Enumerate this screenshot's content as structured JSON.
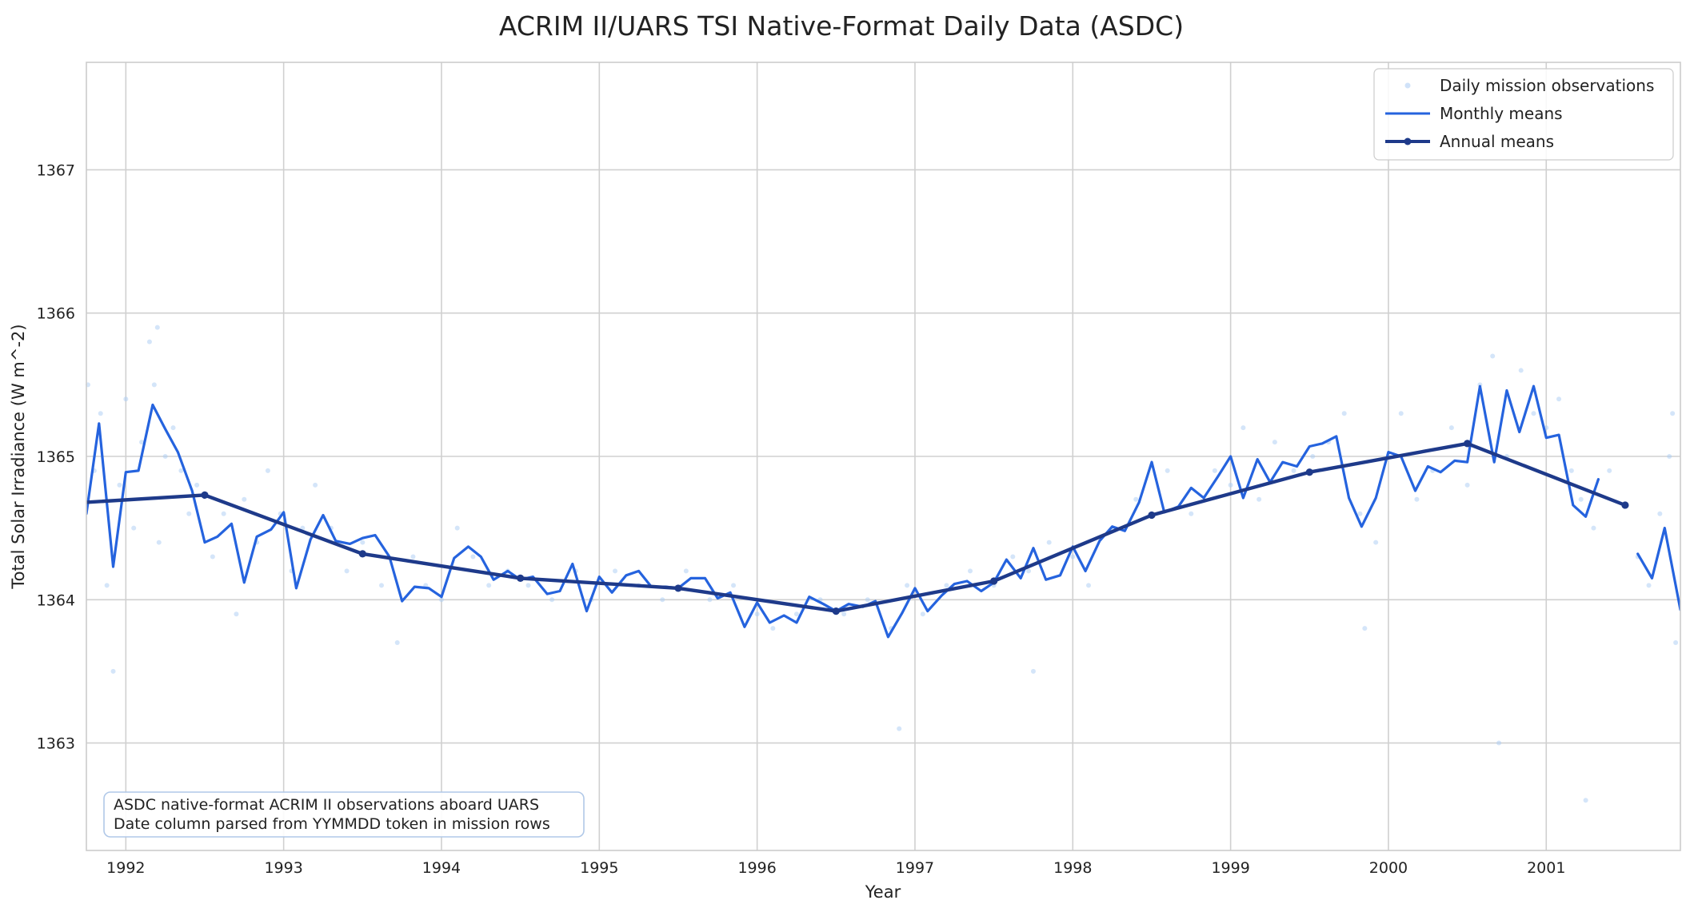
{
  "chart_data": {
    "type": "line",
    "title": "ACRIM II/UARS TSI Native-Format Daily Data (ASDC)",
    "xlabel": "Year",
    "ylabel": "Total Solar Irradiance (W m^-2)",
    "xlim": [
      1991.75,
      2001.85
    ],
    "ylim": [
      1362.25,
      1367.75
    ],
    "x_ticks": [
      1992,
      1993,
      1994,
      1995,
      1996,
      1997,
      1998,
      1999,
      2000,
      2001
    ],
    "y_ticks": [
      1363,
      1364,
      1365,
      1366,
      1367
    ],
    "grid": true,
    "legend_position": "top-right",
    "colors": {
      "daily": "#a9cbf4",
      "monthly": "#2563de",
      "annual": "#1e3a8a"
    },
    "series": [
      {
        "name": "Daily mission observations",
        "style": "scatter",
        "x": [
          1991.76,
          1991.8,
          1991.84,
          1991.88,
          1991.92,
          1991.96,
          1992.0,
          1992.05,
          1992.1,
          1992.15,
          1992.18,
          1992.21,
          1992.25,
          1992.3,
          1992.35,
          1992.4,
          1992.45,
          1992.55,
          1992.62,
          1992.7,
          1992.75,
          1992.83,
          1992.9,
          1992.98,
          1993.05,
          1993.12,
          1993.2,
          1993.3,
          1993.4,
          1993.5,
          1993.62,
          1993.72,
          1993.82,
          1993.9,
          1994.0,
          1994.1,
          1994.2,
          1994.3,
          1994.42,
          1994.55,
          1994.7,
          1994.85,
          1994.95,
          1995.1,
          1995.25,
          1995.4,
          1995.55,
          1995.7,
          1995.85,
          1996.0,
          1996.1,
          1996.25,
          1996.4,
          1996.55,
          1996.7,
          1996.85,
          1996.95,
          1997.05,
          1997.2,
          1997.35,
          1997.5,
          1997.62,
          1997.72,
          1997.85,
          1998.0,
          1998.1,
          1998.25,
          1998.4,
          1998.5,
          1998.6,
          1998.75,
          1998.9,
          1999.0,
          1999.08,
          1999.18,
          1999.28,
          1999.4,
          1999.52,
          1999.62,
          1999.72,
          1999.82,
          1999.92,
          2000.0,
          2000.08,
          2000.18,
          2000.28,
          2000.4,
          2000.5,
          2000.58,
          2000.66,
          2000.75,
          2000.84,
          2000.92,
          2001.0,
          2001.08,
          2001.16,
          2001.22,
          2001.3,
          2001.4,
          2001.58,
          2001.65,
          2001.72,
          2001.78,
          2001.82,
          2001.8,
          1992.2,
          1999.85,
          2000.7,
          2001.25,
          1997.75,
          1996.9
        ],
        "y": [
          1365.5,
          1364.9,
          1365.3,
          1364.1,
          1363.5,
          1364.8,
          1365.4,
          1364.5,
          1365.1,
          1365.8,
          1365.5,
          1364.4,
          1365.0,
          1365.2,
          1364.9,
          1364.6,
          1364.8,
          1364.3,
          1364.6,
          1363.9,
          1364.7,
          1364.4,
          1364.9,
          1364.6,
          1364.2,
          1364.5,
          1364.8,
          1364.5,
          1364.2,
          1364.4,
          1364.1,
          1363.7,
          1364.3,
          1364.1,
          1364.0,
          1364.5,
          1364.3,
          1364.1,
          1364.2,
          1364.1,
          1364.0,
          1364.2,
          1364.0,
          1364.2,
          1364.1,
          1364.0,
          1364.2,
          1364.0,
          1364.1,
          1363.9,
          1363.8,
          1363.9,
          1364.0,
          1363.9,
          1364.0,
          1363.8,
          1364.1,
          1363.9,
          1364.1,
          1364.2,
          1364.1,
          1364.3,
          1364.2,
          1364.4,
          1364.3,
          1364.1,
          1364.5,
          1364.7,
          1364.6,
          1364.9,
          1364.6,
          1364.9,
          1364.8,
          1365.2,
          1364.7,
          1365.1,
          1364.9,
          1365.0,
          1365.1,
          1365.3,
          1364.6,
          1364.4,
          1365.0,
          1365.3,
          1364.7,
          1364.9,
          1365.2,
          1364.8,
          1365.5,
          1365.7,
          1365.0,
          1365.6,
          1365.3,
          1365.2,
          1365.4,
          1364.9,
          1364.7,
          1364.5,
          1364.9,
          1364.3,
          1364.1,
          1364.6,
          1365.0,
          1363.7,
          1365.3,
          1365.9,
          1363.8,
          1363.0,
          1362.6,
          1363.5,
          1363.1
        ]
      },
      {
        "name": "Monthly means",
        "style": "line",
        "x": [
          1991.75,
          1991.83,
          1991.92,
          1992.0,
          1992.08,
          1992.17,
          1992.25,
          1992.33,
          1992.42,
          1992.5,
          1992.58,
          1992.67,
          1992.75,
          1992.83,
          1992.92,
          1993.0,
          1993.08,
          1993.17,
          1993.25,
          1993.33,
          1993.42,
          1993.5,
          1993.58,
          1993.67,
          1993.75,
          1993.83,
          1993.92,
          1994.0,
          1994.08,
          1994.17,
          1994.25,
          1994.33,
          1994.42,
          1994.5,
          1994.58,
          1994.67,
          1994.75,
          1994.83,
          1994.92,
          1995.0,
          1995.08,
          1995.17,
          1995.25,
          1995.33,
          1995.42,
          1995.5,
          1995.58,
          1995.67,
          1995.75,
          1995.83,
          1995.92,
          1996.0,
          1996.08,
          1996.17,
          1996.25,
          1996.33,
          1996.42,
          1996.5,
          1996.58,
          1996.67,
          1996.75,
          1996.83,
          1996.92,
          1997.0,
          1997.08,
          1997.17,
          1997.25,
          1997.33,
          1997.42,
          1997.5,
          1997.58,
          1997.67,
          1997.75,
          1997.83,
          1997.92,
          1998.0,
          1998.08,
          1998.17,
          1998.25,
          1998.33,
          1998.42,
          1998.5,
          1998.58,
          1998.67,
          1998.75,
          1998.83,
          1998.92,
          1999.0,
          1999.08,
          1999.17,
          1999.25,
          1999.33,
          1999.42,
          1999.5,
          1999.58,
          1999.67,
          1999.75,
          1999.83,
          1999.92,
          2000.0,
          2000.08,
          2000.17,
          2000.25,
          2000.33,
          2000.42,
          2000.5,
          2000.58,
          2000.67,
          2000.75,
          2000.83,
          2000.92,
          2001.0,
          2001.08,
          2001.17,
          2001.25,
          2001.33,
          null,
          2001.58,
          2001.67,
          2001.75,
          2001.85
        ],
        "y": [
          1364.6,
          1365.23,
          1364.23,
          1364.89,
          1364.9,
          1365.36,
          1365.19,
          1365.03,
          1364.76,
          1364.4,
          1364.44,
          1364.53,
          1364.12,
          1364.44,
          1364.49,
          1364.61,
          1364.08,
          1364.42,
          1364.59,
          1364.41,
          1364.39,
          1364.43,
          1364.45,
          1364.3,
          1363.99,
          1364.09,
          1364.08,
          1364.02,
          1364.29,
          1364.37,
          1364.3,
          1364.14,
          1364.2,
          1364.14,
          1364.16,
          1364.04,
          1364.06,
          1364.25,
          1363.92,
          1364.16,
          1364.05,
          1364.17,
          1364.2,
          1364.09,
          1364.09,
          1364.08,
          1364.15,
          1364.15,
          1364.01,
          1364.05,
          1363.81,
          1363.98,
          1363.84,
          1363.89,
          1363.84,
          1364.02,
          1363.97,
          1363.92,
          1363.97,
          1363.95,
          1363.99,
          1363.74,
          1363.91,
          1364.08,
          1363.92,
          1364.03,
          1364.11,
          1364.13,
          1364.06,
          1364.12,
          1364.28,
          1364.15,
          1364.36,
          1364.14,
          1364.17,
          1364.37,
          1364.2,
          1364.41,
          1364.51,
          1364.48,
          1364.68,
          1364.96,
          1364.61,
          1364.65,
          1364.78,
          1364.71,
          1364.86,
          1365.0,
          1364.71,
          1364.98,
          1364.82,
          1364.96,
          1364.93,
          1365.07,
          1365.09,
          1365.14,
          1364.71,
          1364.51,
          1364.71,
          1365.03,
          1365.0,
          1364.76,
          1364.93,
          1364.89,
          1364.97,
          1364.96,
          1365.49,
          1364.96,
          1365.46,
          1365.17,
          1365.49,
          1365.13,
          1365.15,
          1364.66,
          1364.58,
          1364.84,
          null,
          1364.32,
          1364.15,
          1364.5,
          1363.93
        ]
      },
      {
        "name": "Annual means",
        "style": "line-marker",
        "x": [
          1991.75,
          1992.5,
          1993.5,
          1994.5,
          1995.5,
          1996.5,
          1997.5,
          1998.5,
          1999.5,
          2000.5,
          2001.5
        ],
        "y": [
          1364.68,
          1364.73,
          1364.32,
          1364.15,
          1364.08,
          1363.92,
          1364.13,
          1364.59,
          1364.89,
          1365.09,
          1364.66
        ]
      }
    ],
    "annotation_lines": [
      "ASDC native-format ACRIM II observations aboard UARS",
      "Date column parsed from YYMMDD token in mission rows"
    ]
  }
}
